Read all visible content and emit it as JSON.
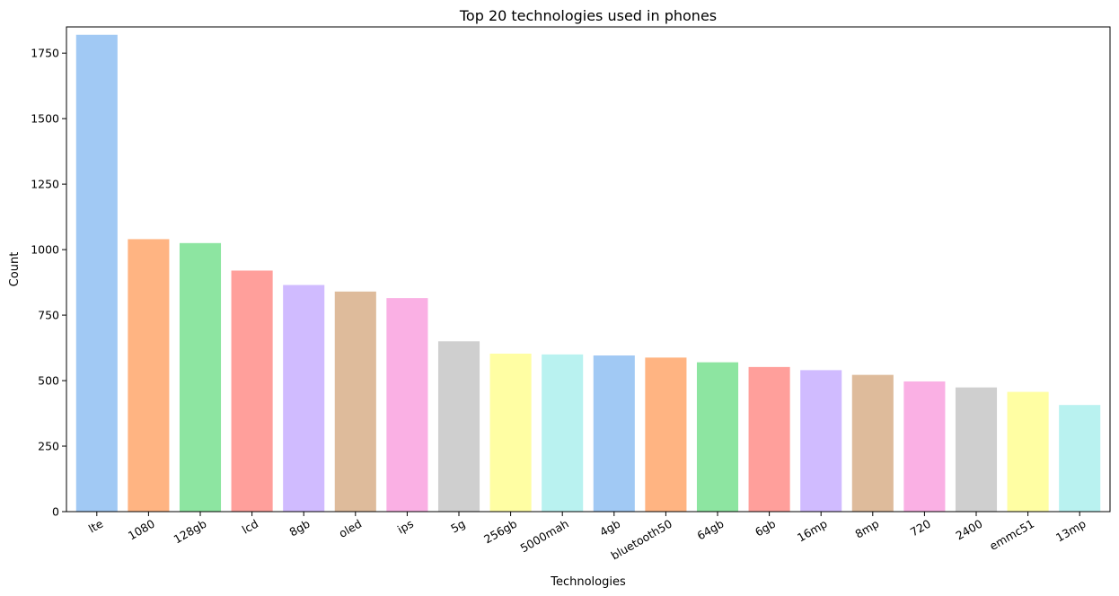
{
  "chart_data": {
    "type": "bar",
    "title": "Top 20 technologies used in phones",
    "xlabel": "Technologies",
    "ylabel": "Count",
    "categories": [
      "lte",
      "1080",
      "128gb",
      "lcd",
      "8gb",
      "oled",
      "ips",
      "5g",
      "256gb",
      "5000mah",
      "4gb",
      "bluetooth50",
      "64gb",
      "6gb",
      "16mp",
      "8mp",
      "720",
      "2400",
      "emmc51",
      "13mp"
    ],
    "values": [
      1820,
      1040,
      1025,
      920,
      865,
      840,
      815,
      650,
      603,
      600,
      596,
      588,
      570,
      552,
      540,
      522,
      497,
      474,
      457,
      407
    ],
    "ylim": [
      0,
      1850
    ],
    "yticks": [
      0,
      250,
      500,
      750,
      1000,
      1250,
      1500,
      1750
    ],
    "grid": false,
    "legend": "none",
    "palette": [
      "#a1c9f4",
      "#ffb482",
      "#8de5a1",
      "#ff9f9b",
      "#d0bbff",
      "#debb9b",
      "#fab0e4",
      "#cfcfcf",
      "#fffea3",
      "#b9f2f0"
    ]
  }
}
